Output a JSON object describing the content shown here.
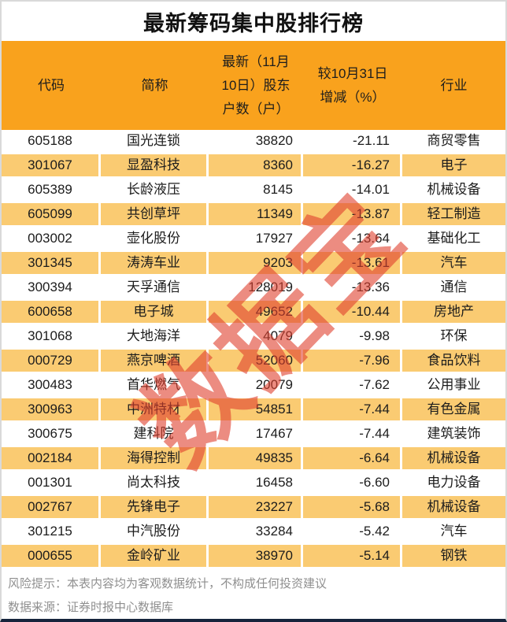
{
  "chart_data": {
    "type": "table",
    "title": "最新筹码集中股排行榜",
    "columns": [
      "代码",
      "简称",
      "最新（11月10日）股东户数（户）",
      "较10月31日增减（%）",
      "行业"
    ],
    "header_display": [
      "代码",
      "简称",
      "最新（11月\n10日）股东\n户数（户）",
      "较10月31日\n增减（%）",
      "行业"
    ],
    "rows": [
      {
        "code": "605188",
        "name": "国光连锁",
        "holders": 38820,
        "change": "-21.11",
        "industry": "商贸零售"
      },
      {
        "code": "301067",
        "name": "显盈科技",
        "holders": 8360,
        "change": "-16.27",
        "industry": "电子"
      },
      {
        "code": "605389",
        "name": "长龄液压",
        "holders": 8145,
        "change": "-14.01",
        "industry": "机械设备"
      },
      {
        "code": "605099",
        "name": "共创草坪",
        "holders": 11349,
        "change": "-13.87",
        "industry": "轻工制造"
      },
      {
        "code": "003002",
        "name": "壶化股份",
        "holders": 17927,
        "change": "-13.64",
        "industry": "基础化工"
      },
      {
        "code": "301345",
        "name": "涛涛车业",
        "holders": 9203,
        "change": "-13.61",
        "industry": "汽车"
      },
      {
        "code": "300394",
        "name": "天孚通信",
        "holders": 128019,
        "change": "-13.36",
        "industry": "通信"
      },
      {
        "code": "600658",
        "name": "电子城",
        "holders": 49652,
        "change": "-10.44",
        "industry": "房地产"
      },
      {
        "code": "301068",
        "name": "大地海洋",
        "holders": 4079,
        "change": "-9.98",
        "industry": "环保"
      },
      {
        "code": "000729",
        "name": "燕京啤酒",
        "holders": 52060,
        "change": "-7.96",
        "industry": "食品饮料"
      },
      {
        "code": "300483",
        "name": "首华燃气",
        "holders": 20079,
        "change": "-7.62",
        "industry": "公用事业"
      },
      {
        "code": "300963",
        "name": "中洲特材",
        "holders": 54851,
        "change": "-7.44",
        "industry": "有色金属"
      },
      {
        "code": "300675",
        "name": "建科院",
        "holders": 17467,
        "change": "-7.44",
        "industry": "建筑装饰"
      },
      {
        "code": "002184",
        "name": "海得控制",
        "holders": 49835,
        "change": "-6.64",
        "industry": "机械设备"
      },
      {
        "code": "001301",
        "name": "尚太科技",
        "holders": 16458,
        "change": "-6.60",
        "industry": "电力设备"
      },
      {
        "code": "002767",
        "name": "先锋电子",
        "holders": 23227,
        "change": "-5.68",
        "industry": "机械设备"
      },
      {
        "code": "301215",
        "name": "中汽股份",
        "holders": 33284,
        "change": "-5.42",
        "industry": "汽车"
      },
      {
        "code": "000655",
        "name": "金岭矿业",
        "holders": 38970,
        "change": "-5.14",
        "industry": "钢铁"
      }
    ]
  },
  "watermark": "数据宝",
  "footer": {
    "risk": "风险提示：本表内容均为客观数据统计，不构成任何投资建议",
    "source": "数据来源：证券时报中心数据库"
  },
  "colors": {
    "header-bg": "#F9A21D",
    "row-alt-bg": "#FACB72",
    "title-color": "#111111",
    "text-color": "#1C1C1C",
    "footer-text": "#8F8F8F",
    "watermark-color": "#E0402E",
    "border-light": "#D9D9D9",
    "border-dark": "#16243C"
  }
}
